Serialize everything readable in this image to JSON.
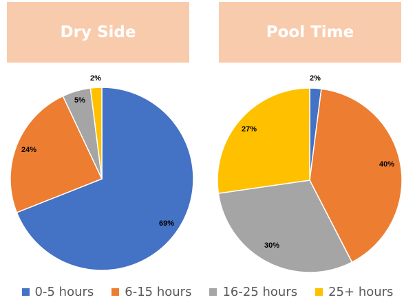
{
  "chart_data": [
    {
      "type": "pie",
      "title": "Dry Side",
      "categories": [
        "0-5 hours",
        "6-15 hours",
        "16-25 hours",
        "25+ hours"
      ],
      "values": [
        69,
        24,
        5,
        2
      ],
      "data_labels": [
        "69%",
        "24%",
        "5%",
        "2%"
      ],
      "colors": [
        "#4472c4",
        "#ed7d31",
        "#a5a5a5",
        "#ffc000"
      ]
    },
    {
      "type": "pie",
      "title": "Pool Time",
      "categories": [
        "0-5 hours",
        "6-15 hours",
        "16-25 hours",
        "25+ hours"
      ],
      "values": [
        2,
        40,
        30,
        27
      ],
      "data_labels": [
        "2%",
        "40%",
        "30%",
        "27%"
      ],
      "colors": [
        "#4472c4",
        "#ed7d31",
        "#a5a5a5",
        "#ffc000"
      ]
    }
  ],
  "legend": {
    "placement": "bottom",
    "items": [
      {
        "label": "0-5 hours",
        "color": "#4472c4"
      },
      {
        "label": "6-15 hours",
        "color": "#ed7d31"
      },
      {
        "label": "16-25 hours",
        "color": "#a5a5a5"
      },
      {
        "label": "25+ hours",
        "color": "#ffc000"
      }
    ]
  }
}
